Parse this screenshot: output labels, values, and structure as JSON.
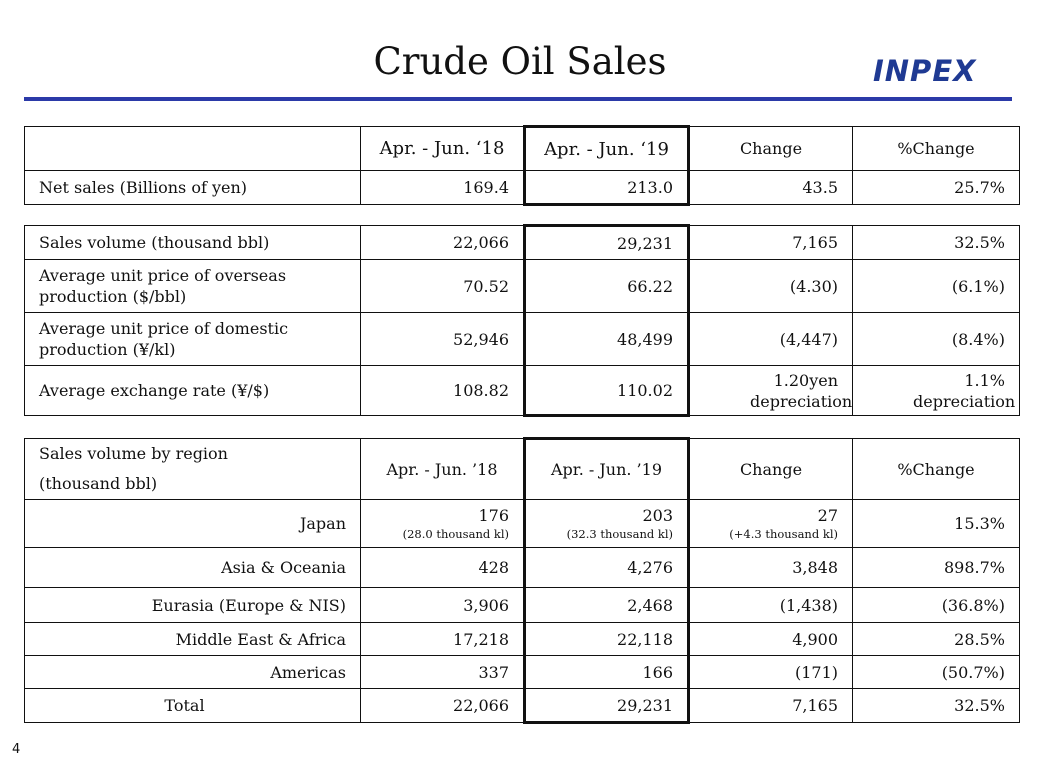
{
  "header": {
    "title": "Crude Oil Sales",
    "logo_text": "INPEX"
  },
  "page_number": "4",
  "table1": {
    "columns": [
      "",
      "Apr. - Jun. ‘18",
      "Apr. - Jun. ‘19",
      "Change",
      "%Change"
    ],
    "rows": [
      {
        "label": "Net sales (Billions of yen)",
        "v18": "169.4",
        "v19": "213.0",
        "change": "43.5",
        "pct": "25.7%"
      }
    ]
  },
  "table2": {
    "rows": [
      {
        "label": "Sales volume  (thousand bbl)",
        "v18": "22,066",
        "v19": "29,231",
        "change": "7,165",
        "pct": "32.5%"
      },
      {
        "label": "Average unit price of overseas production ($/bbl)",
        "v18": "70.52",
        "v19": "66.22",
        "change": "(4.30)",
        "pct": "(6.1%)"
      },
      {
        "label": "Average unit price of domestic production (¥/kl)",
        "v18": "52,946",
        "v19": "48,499",
        "change": "(4,447)",
        "pct": "(8.4%)"
      },
      {
        "label": "Average exchange rate (¥/$)",
        "v18": "108.82",
        "v19": "110.02",
        "change": "1.20yen depreciation",
        "pct": "1.1% depreciation"
      }
    ]
  },
  "table3": {
    "header": {
      "label_line1": "Sales volume by region",
      "label_line2": "(thousand bbl)",
      "col18": "Apr. - Jun. ’18",
      "col19": "Apr. - Jun. ’19",
      "change": "Change",
      "pct": "%Change"
    },
    "japan": {
      "label": "Japan",
      "v18": "176",
      "v18_sub": "(28.0 thousand kl)",
      "v19": "203",
      "v19_sub": "(32.3 thousand kl)",
      "change": "27",
      "change_sub": "(+4.3 thousand kl)",
      "pct": "15.3%"
    },
    "rows": [
      {
        "label": "Asia & Oceania",
        "v18": "428",
        "v19": "4,276",
        "change": "3,848",
        "pct": "898.7%"
      },
      {
        "label": "Eurasia (Europe & NIS)",
        "v18": "3,906",
        "v19": "2,468",
        "change": "(1,438)",
        "pct": "(36.8%)"
      },
      {
        "label": "Middle East & Africa",
        "v18": "17,218",
        "v19": "22,118",
        "change": "4,900",
        "pct": "28.5%"
      },
      {
        "label": "Americas",
        "v18": "337",
        "v19": "166",
        "change": "(171)",
        "pct": "(50.7%)"
      }
    ],
    "total": {
      "label": "Total",
      "v18": "22,066",
      "v19": "29,231",
      "change": "7,165",
      "pct": "32.5%"
    }
  }
}
